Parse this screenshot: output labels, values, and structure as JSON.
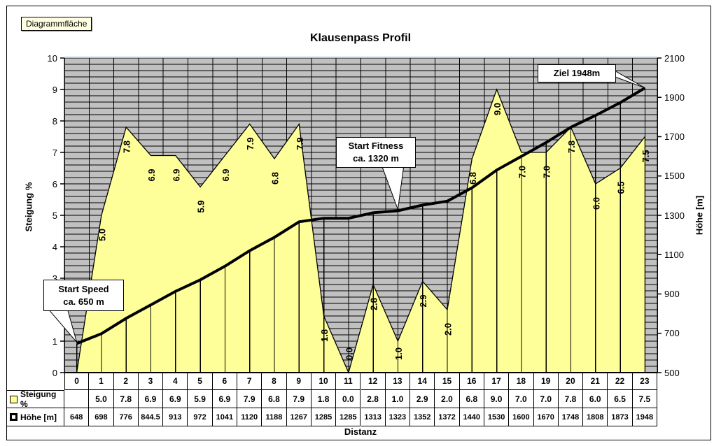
{
  "tooltip": {
    "label": "Diagrammfläche"
  },
  "colors": {
    "plot_bg": "#C0C0C0",
    "area_fill": "#FFFF99",
    "line": "#000000",
    "grid": "#000000",
    "plot_top_border": "#A6CAF0",
    "tooltip_bg": "#FFFFE1",
    "annotation_bg": "#FFFFFF"
  },
  "chart_data": {
    "type": "combo-area-line",
    "title": "Klausenpass Profil",
    "xlabel": "Distanz",
    "categories": [
      0,
      1,
      2,
      3,
      4,
      5,
      6,
      7,
      8,
      9,
      10,
      11,
      12,
      13,
      14,
      15,
      16,
      17,
      18,
      19,
      20,
      21,
      22,
      23
    ],
    "series": [
      {
        "name": "Steigung %",
        "type": "area",
        "axis": "left",
        "fill": "#FFFF99",
        "values": [
          null,
          5.0,
          7.8,
          6.9,
          6.9,
          5.9,
          6.9,
          7.9,
          6.8,
          7.9,
          1.8,
          0.0,
          2.8,
          1.0,
          2.9,
          2.0,
          6.8,
          9.0,
          7.0,
          7.0,
          7.8,
          6.0,
          6.5,
          7.5
        ]
      },
      {
        "name": "Höhe [m]",
        "type": "line",
        "axis": "right",
        "color": "#000000",
        "values": [
          648,
          698,
          776,
          844.5,
          913,
          972,
          1041,
          1120,
          1188,
          1267,
          1285,
          1285,
          1313,
          1323,
          1352,
          1372,
          1440,
          1530,
          1600,
          1670,
          1748,
          1808,
          1873,
          1948
        ]
      }
    ],
    "left_axis": {
      "title": "Steigung %",
      "min": 0,
      "max": 10,
      "major": 1,
      "minor": 0.2
    },
    "right_axis": {
      "title": "Höhe [m]",
      "min": 500,
      "max": 2100,
      "major": 200
    },
    "grid": true,
    "legend_position": "data-table",
    "annotations": [
      {
        "lines": [
          "Start Speed",
          "ca. 650 m"
        ],
        "target": "category 0"
      },
      {
        "lines": [
          "Start Fitness",
          "ca. 1320 m"
        ],
        "target": "category 13"
      },
      {
        "lines": [
          "Ziel 1948m"
        ],
        "target": "category 23"
      }
    ]
  }
}
